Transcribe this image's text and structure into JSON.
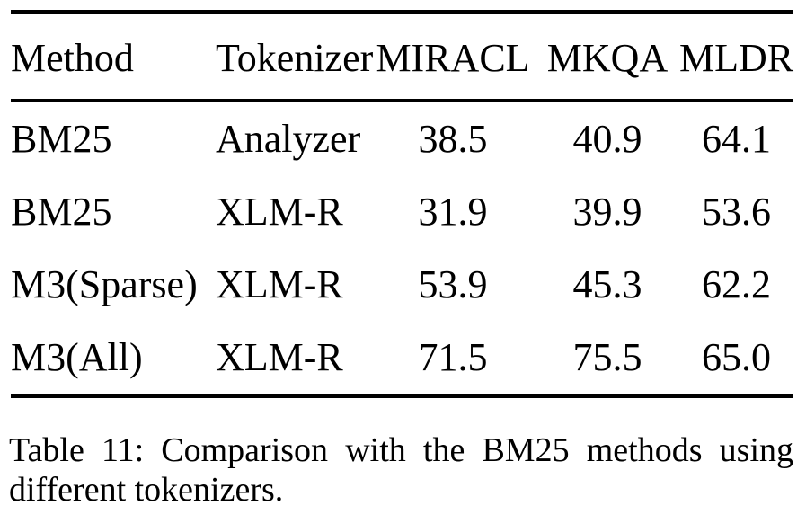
{
  "table": {
    "columns": [
      "Method",
      "Tokenizer",
      "MIRACL",
      "MKQA",
      "MLDR"
    ],
    "rows": [
      [
        "BM25",
        "Analyzer",
        "38.5",
        "40.9",
        "64.1"
      ],
      [
        "BM25",
        "XLM-R",
        "31.9",
        "39.9",
        "53.6"
      ],
      [
        "M3(Sparse)",
        "XLM-R",
        "53.9",
        "45.3",
        "62.2"
      ],
      [
        "M3(All)",
        "XLM-R",
        "71.5",
        "75.5",
        "65.0"
      ]
    ]
  },
  "caption": "Table 11: Comparison with the BM25 methods using different tokenizers.",
  "colors": {
    "text": "#000000",
    "rule": "#000000",
    "background": "#ffffff"
  }
}
